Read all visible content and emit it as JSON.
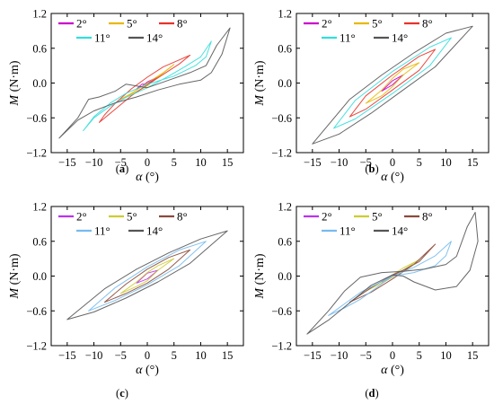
{
  "chart_data": [
    {
      "id": "a",
      "caption": "(a)",
      "type": "line",
      "xlabel_symbol": "α",
      "xlabel_unit": " (°)",
      "ylabel_symbol": "M",
      "ylabel_unit": " (N·m)",
      "xlim": [
        -18,
        18
      ],
      "ylim": [
        -1.2,
        1.2
      ],
      "xticks": [
        -15,
        -10,
        -5,
        0,
        5,
        10,
        15
      ],
      "xtick_labels": [
        "−15",
        "−10",
        "−5",
        "0",
        "5",
        "10",
        "15"
      ],
      "yticks": [
        -1.2,
        -0.6,
        0.0,
        0.6,
        1.2
      ],
      "ytick_labels": [
        "−1.2",
        "−0.6",
        "0.0",
        "0.6",
        "1.2"
      ],
      "grid": false,
      "legend": "top-left",
      "series": [
        {
          "name": "2°",
          "color": "#cc00cc",
          "points": [
            [
              -2,
              -0.1
            ],
            [
              -1,
              -0.02
            ],
            [
              0,
              -0.02
            ],
            [
              1,
              0.05
            ],
            [
              2,
              0.1
            ],
            [
              1,
              0.06
            ],
            [
              0,
              0.02
            ],
            [
              -1,
              -0.06
            ],
            [
              -2,
              -0.1
            ]
          ]
        },
        {
          "name": "5°",
          "color": "#e8b800",
          "points": [
            [
              -5,
              -0.28
            ],
            [
              -2,
              -0.15
            ],
            [
              0,
              -0.05
            ],
            [
              2,
              0.1
            ],
            [
              5,
              0.32
            ],
            [
              3,
              0.18
            ],
            [
              0,
              0.0
            ],
            [
              -3,
              -0.18
            ],
            [
              -5,
              -0.28
            ]
          ]
        },
        {
          "name": "8°",
          "color": "#e8332a",
          "points": [
            [
              -9,
              -0.68
            ],
            [
              -6,
              -0.45
            ],
            [
              -3,
              -0.22
            ],
            [
              0,
              -0.03
            ],
            [
              3,
              0.15
            ],
            [
              6,
              0.33
            ],
            [
              8,
              0.48
            ],
            [
              6,
              0.4
            ],
            [
              3,
              0.28
            ],
            [
              0,
              0.1
            ],
            [
              -3,
              -0.1
            ],
            [
              -6,
              -0.35
            ],
            [
              -8,
              -0.55
            ],
            [
              -9,
              -0.68
            ]
          ]
        },
        {
          "name": "11°",
          "color": "#33dddd",
          "points": [
            [
              -12,
              -0.82
            ],
            [
              -10,
              -0.6
            ],
            [
              -7,
              -0.4
            ],
            [
              -4,
              -0.25
            ],
            [
              0,
              -0.08
            ],
            [
              4,
              0.12
            ],
            [
              7,
              0.28
            ],
            [
              10,
              0.45
            ],
            [
              12,
              0.72
            ],
            [
              11,
              0.45
            ],
            [
              9,
              0.3
            ],
            [
              5,
              0.12
            ],
            [
              0,
              -0.02
            ],
            [
              -4,
              -0.18
            ],
            [
              -7,
              -0.35
            ],
            [
              -10,
              -0.58
            ],
            [
              -12,
              -0.82
            ]
          ]
        },
        {
          "name": "14°",
          "color": "#555555",
          "points": [
            [
              -16.5,
              -0.95
            ],
            [
              -13,
              -0.6
            ],
            [
              -11,
              -0.28
            ],
            [
              -9,
              -0.24
            ],
            [
              -6,
              -0.14
            ],
            [
              -4,
              -0.02
            ],
            [
              -2,
              -0.05
            ],
            [
              0,
              -0.08
            ],
            [
              4,
              0.05
            ],
            [
              8,
              0.18
            ],
            [
              11,
              0.3
            ],
            [
              13,
              0.65
            ],
            [
              15.5,
              0.95
            ],
            [
              14,
              0.5
            ],
            [
              12,
              0.18
            ],
            [
              10,
              0.05
            ],
            [
              6,
              -0.02
            ],
            [
              2,
              -0.12
            ],
            [
              -2,
              -0.24
            ],
            [
              -6,
              -0.34
            ],
            [
              -10,
              -0.48
            ],
            [
              -13,
              -0.64
            ],
            [
              -16.5,
              -0.95
            ]
          ]
        }
      ]
    },
    {
      "id": "b",
      "caption": "(b)",
      "type": "line",
      "xlabel_symbol": "α",
      "xlabel_unit": " (°)",
      "ylabel_symbol": "M",
      "ylabel_unit": " (N·m)",
      "xlim": [
        -18,
        18
      ],
      "ylim": [
        -1.2,
        1.2
      ],
      "xticks": [
        -15,
        -10,
        -5,
        0,
        5,
        10,
        15
      ],
      "xtick_labels": [
        "−15",
        "−10",
        "−5",
        "0",
        "5",
        "10",
        "15"
      ],
      "yticks": [
        -1.2,
        -0.6,
        0.0,
        0.6,
        1.2
      ],
      "ytick_labels": [
        "−1.2",
        "−0.6",
        "0.0",
        "0.6",
        "1.2"
      ],
      "grid": false,
      "legend": "top-left",
      "series": [
        {
          "name": "2°",
          "color": "#cc00cc",
          "points": [
            [
              -2,
              -0.14
            ],
            [
              0,
              -0.03
            ],
            [
              2,
              0.14
            ],
            [
              0,
              0.04
            ],
            [
              -2,
              -0.14
            ]
          ]
        },
        {
          "name": "5°",
          "color": "#e8b800",
          "points": [
            [
              -5,
              -0.35
            ],
            [
              -2,
              -0.22
            ],
            [
              0,
              -0.06
            ],
            [
              2,
              0.14
            ],
            [
              5,
              0.35
            ],
            [
              2,
              0.24
            ],
            [
              0,
              0.08
            ],
            [
              -2,
              -0.12
            ],
            [
              -5,
              -0.35
            ]
          ]
        },
        {
          "name": "8°",
          "color": "#e8332a",
          "points": [
            [
              -8,
              -0.58
            ],
            [
              -5,
              -0.45
            ],
            [
              0,
              -0.12
            ],
            [
              5,
              0.22
            ],
            [
              8,
              0.58
            ],
            [
              5,
              0.46
            ],
            [
              0,
              0.14
            ],
            [
              -5,
              -0.22
            ],
            [
              -8,
              -0.58
            ]
          ]
        },
        {
          "name": "11°",
          "color": "#33dddd",
          "points": [
            [
              -11,
              -0.78
            ],
            [
              -7,
              -0.62
            ],
            [
              0,
              -0.18
            ],
            [
              7,
              0.3
            ],
            [
              11,
              0.78
            ],
            [
              7,
              0.62
            ],
            [
              0,
              0.2
            ],
            [
              -7,
              -0.3
            ],
            [
              -11,
              -0.78
            ]
          ]
        },
        {
          "name": "14°",
          "color": "#555555",
          "points": [
            [
              -15,
              -1.05
            ],
            [
              -10,
              -0.88
            ],
            [
              -4,
              -0.52
            ],
            [
              2,
              -0.12
            ],
            [
              8,
              0.28
            ],
            [
              15,
              0.98
            ],
            [
              10,
              0.86
            ],
            [
              4,
              0.52
            ],
            [
              -2,
              0.14
            ],
            [
              -8,
              -0.28
            ],
            [
              -15,
              -1.05
            ]
          ]
        }
      ]
    },
    {
      "id": "c",
      "caption": "(c)",
      "type": "line",
      "xlabel_symbol": "α",
      "xlabel_unit": " (°)",
      "ylabel_symbol": "M",
      "ylabel_unit": " (N·m)",
      "xlim": [
        -18,
        18
      ],
      "ylim": [
        -1.2,
        1.2
      ],
      "xticks": [
        -15,
        -10,
        -5,
        0,
        5,
        10,
        15
      ],
      "xtick_labels": [
        "−15",
        "−10",
        "−5",
        "0",
        "5",
        "10",
        "15"
      ],
      "yticks": [
        -1.2,
        -0.6,
        0.0,
        0.6,
        1.2
      ],
      "ytick_labels": [
        "−1.2",
        "−0.6",
        "0.0",
        "0.6",
        "1.2"
      ],
      "grid": false,
      "legend": "top-left",
      "series": [
        {
          "name": "2°",
          "color": "#bb33ee",
          "points": [
            [
              -2,
              -0.12
            ],
            [
              0,
              -0.05
            ],
            [
              2,
              0.1
            ],
            [
              0,
              0.05
            ],
            [
              -2,
              -0.12
            ]
          ]
        },
        {
          "name": "5°",
          "color": "#cccc33",
          "points": [
            [
              -5,
              -0.3
            ],
            [
              -2,
              -0.18
            ],
            [
              0,
              -0.08
            ],
            [
              2,
              0.1
            ],
            [
              5,
              0.3
            ],
            [
              2,
              0.18
            ],
            [
              0,
              0.06
            ],
            [
              -2,
              -0.1
            ],
            [
              -5,
              -0.3
            ]
          ]
        },
        {
          "name": "8°",
          "color": "#8b4a3a",
          "points": [
            [
              -8,
              -0.45
            ],
            [
              -4,
              -0.3
            ],
            [
              0,
              -0.12
            ],
            [
              4,
              0.12
            ],
            [
              8,
              0.45
            ],
            [
              4,
              0.32
            ],
            [
              0,
              0.12
            ],
            [
              -4,
              -0.14
            ],
            [
              -8,
              -0.45
            ]
          ]
        },
        {
          "name": "11°",
          "color": "#77bbee",
          "points": [
            [
              -11,
              -0.6
            ],
            [
              -6,
              -0.42
            ],
            [
              0,
              -0.15
            ],
            [
              6,
              0.18
            ],
            [
              11,
              0.6
            ],
            [
              6,
              0.45
            ],
            [
              0,
              0.16
            ],
            [
              -6,
              -0.2
            ],
            [
              -11,
              -0.6
            ]
          ]
        },
        {
          "name": "14°",
          "color": "#555555",
          "points": [
            [
              -15,
              -0.75
            ],
            [
              -10,
              -0.62
            ],
            [
              -4,
              -0.38
            ],
            [
              2,
              -0.1
            ],
            [
              8,
              0.22
            ],
            [
              15,
              0.78
            ],
            [
              10,
              0.64
            ],
            [
              4,
              0.4
            ],
            [
              -2,
              0.12
            ],
            [
              -8,
              -0.22
            ],
            [
              -15,
              -0.75
            ]
          ]
        }
      ]
    },
    {
      "id": "d",
      "caption": "(d)",
      "type": "line",
      "xlabel_symbol": "α",
      "xlabel_unit": " (°)",
      "ylabel_symbol": "M",
      "ylabel_unit": " (N·m)",
      "xlim": [
        -18,
        18
      ],
      "ylim": [
        -1.2,
        1.2
      ],
      "xticks": [
        -15,
        -10,
        -5,
        0,
        5,
        10,
        15
      ],
      "xtick_labels": [
        "−15",
        "−10",
        "−5",
        "0",
        "5",
        "10",
        "15"
      ],
      "yticks": [
        -1.2,
        -0.6,
        0.0,
        0.6,
        1.2
      ],
      "ytick_labels": [
        "−1.2",
        "−0.6",
        "0.0",
        "0.6",
        "1.2"
      ],
      "grid": false,
      "legend": "top-left",
      "series": [
        {
          "name": "2°",
          "color": "#bb33ee",
          "points": [
            [
              -2,
              -0.1
            ],
            [
              0,
              0.0
            ],
            [
              2,
              0.1
            ],
            [
              0,
              0.02
            ],
            [
              -2,
              -0.1
            ]
          ]
        },
        {
          "name": "5°",
          "color": "#cccc33",
          "points": [
            [
              -5,
              -0.26
            ],
            [
              -2,
              -0.12
            ],
            [
              0,
              -0.02
            ],
            [
              2,
              0.1
            ],
            [
              5,
              0.28
            ],
            [
              2,
              0.14
            ],
            [
              0,
              0.02
            ],
            [
              -2,
              -0.12
            ],
            [
              -5,
              -0.26
            ]
          ]
        },
        {
          "name": "8°",
          "color": "#8b4a3a",
          "points": [
            [
              -8,
              -0.45
            ],
            [
              -4,
              -0.28
            ],
            [
              0,
              -0.05
            ],
            [
              4,
              0.2
            ],
            [
              8,
              0.55
            ],
            [
              5,
              0.25
            ],
            [
              2,
              0.1
            ],
            [
              0,
              0.02
            ],
            [
              -4,
              -0.2
            ],
            [
              -8,
              -0.45
            ]
          ]
        },
        {
          "name": "11°",
          "color": "#77bbee",
          "points": [
            [
              -12,
              -0.68
            ],
            [
              -9,
              -0.55
            ],
            [
              -6,
              -0.4
            ],
            [
              -3,
              -0.2
            ],
            [
              0,
              0.0
            ],
            [
              4,
              0.15
            ],
            [
              8,
              0.35
            ],
            [
              11,
              0.6
            ],
            [
              10,
              0.35
            ],
            [
              8,
              0.18
            ],
            [
              4,
              0.06
            ],
            [
              0,
              0.0
            ],
            [
              -3,
              -0.14
            ],
            [
              -6,
              -0.28
            ],
            [
              -9,
              -0.48
            ],
            [
              -12,
              -0.68
            ]
          ]
        },
        {
          "name": "14°",
          "color": "#555555",
          "points": [
            [
              -16,
              -1.0
            ],
            [
              -12,
              -0.6
            ],
            [
              -9,
              -0.26
            ],
            [
              -6,
              -0.02
            ],
            [
              -2,
              0.06
            ],
            [
              2,
              0.08
            ],
            [
              6,
              0.12
            ],
            [
              10,
              0.2
            ],
            [
              12,
              0.34
            ],
            [
              14,
              0.85
            ],
            [
              15.5,
              1.1
            ],
            [
              16,
              0.6
            ],
            [
              14.5,
              0.1
            ],
            [
              12,
              -0.18
            ],
            [
              8,
              -0.24
            ],
            [
              4,
              -0.1
            ],
            [
              2,
              0.0
            ],
            [
              0,
              0.02
            ],
            [
              -4,
              -0.16
            ],
            [
              -8,
              -0.46
            ],
            [
              -12,
              -0.76
            ],
            [
              -16,
              -1.0
            ]
          ]
        }
      ]
    }
  ]
}
